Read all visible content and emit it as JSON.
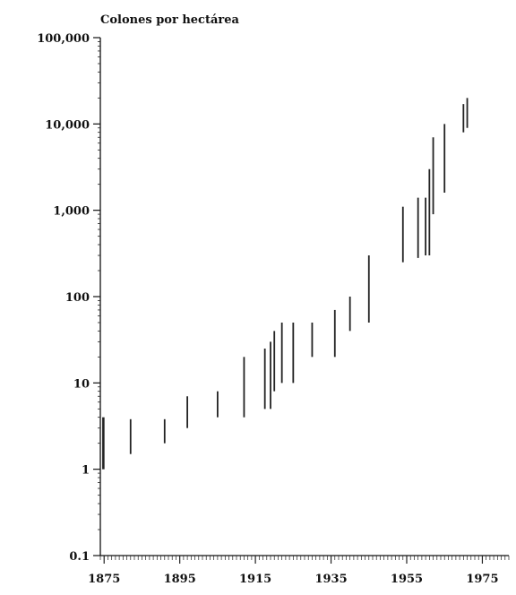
{
  "chart_data": {
    "type": "range-bar",
    "title": "",
    "ylabel": "Colones por hectárea",
    "xlabel": "",
    "yscale": "log",
    "ylim": [
      0.1,
      100000
    ],
    "xlim": [
      1874,
      1982
    ],
    "y_ticks": [
      {
        "value": 100000,
        "label": "100,000"
      },
      {
        "value": 10000,
        "label": "10,000"
      },
      {
        "value": 1000,
        "label": "1,000"
      },
      {
        "value": 100,
        "label": "100"
      },
      {
        "value": 10,
        "label": "10"
      },
      {
        "value": 1,
        "label": "1"
      },
      {
        "value": 0.1,
        "label": "0.1"
      }
    ],
    "x_ticks": [
      {
        "value": 1875,
        "label": "1875"
      },
      {
        "value": 1895,
        "label": "1895"
      },
      {
        "value": 1915,
        "label": "1915"
      },
      {
        "value": 1935,
        "label": "1935"
      },
      {
        "value": 1955,
        "label": "1955"
      },
      {
        "value": 1975,
        "label": "1975"
      }
    ],
    "grid": false,
    "legend": "none",
    "series": [
      {
        "color": "#222222",
        "ranges": [
          {
            "x": 1874.8,
            "low": 1.0,
            "high": 4.0
          },
          {
            "x": 1882,
            "low": 1.5,
            "high": 3.8
          },
          {
            "x": 1891,
            "low": 2.0,
            "high": 3.8
          },
          {
            "x": 1897,
            "low": 3.0,
            "high": 7.0
          },
          {
            "x": 1905,
            "low": 4.0,
            "high": 8.0
          },
          {
            "x": 1912,
            "low": 4.0,
            "high": 20.0
          },
          {
            "x": 1917.5,
            "low": 5.0,
            "high": 25.0
          },
          {
            "x": 1919,
            "low": 5.0,
            "high": 30.0
          },
          {
            "x": 1920,
            "low": 8.0,
            "high": 40.0
          },
          {
            "x": 1922,
            "low": 10.0,
            "high": 50.0
          },
          {
            "x": 1925,
            "low": 10.0,
            "high": 50.0
          },
          {
            "x": 1930,
            "low": 20.0,
            "high": 50.0
          },
          {
            "x": 1936,
            "low": 20.0,
            "high": 70.0
          },
          {
            "x": 1940,
            "low": 40.0,
            "high": 100.0
          },
          {
            "x": 1945,
            "low": 50.0,
            "high": 300.0
          },
          {
            "x": 1954,
            "low": 250.0,
            "high": 1100.0
          },
          {
            "x": 1958,
            "low": 280.0,
            "high": 1400.0
          },
          {
            "x": 1960,
            "low": 300.0,
            "high": 1400.0
          },
          {
            "x": 1961,
            "low": 300.0,
            "high": 3000.0
          },
          {
            "x": 1962,
            "low": 900.0,
            "high": 7000.0
          },
          {
            "x": 1965,
            "low": 1600.0,
            "high": 10000.0
          },
          {
            "x": 1970,
            "low": 8000.0,
            "high": 17000.0
          },
          {
            "x": 1971,
            "low": 9000.0,
            "high": 20000.0
          }
        ]
      }
    ]
  }
}
